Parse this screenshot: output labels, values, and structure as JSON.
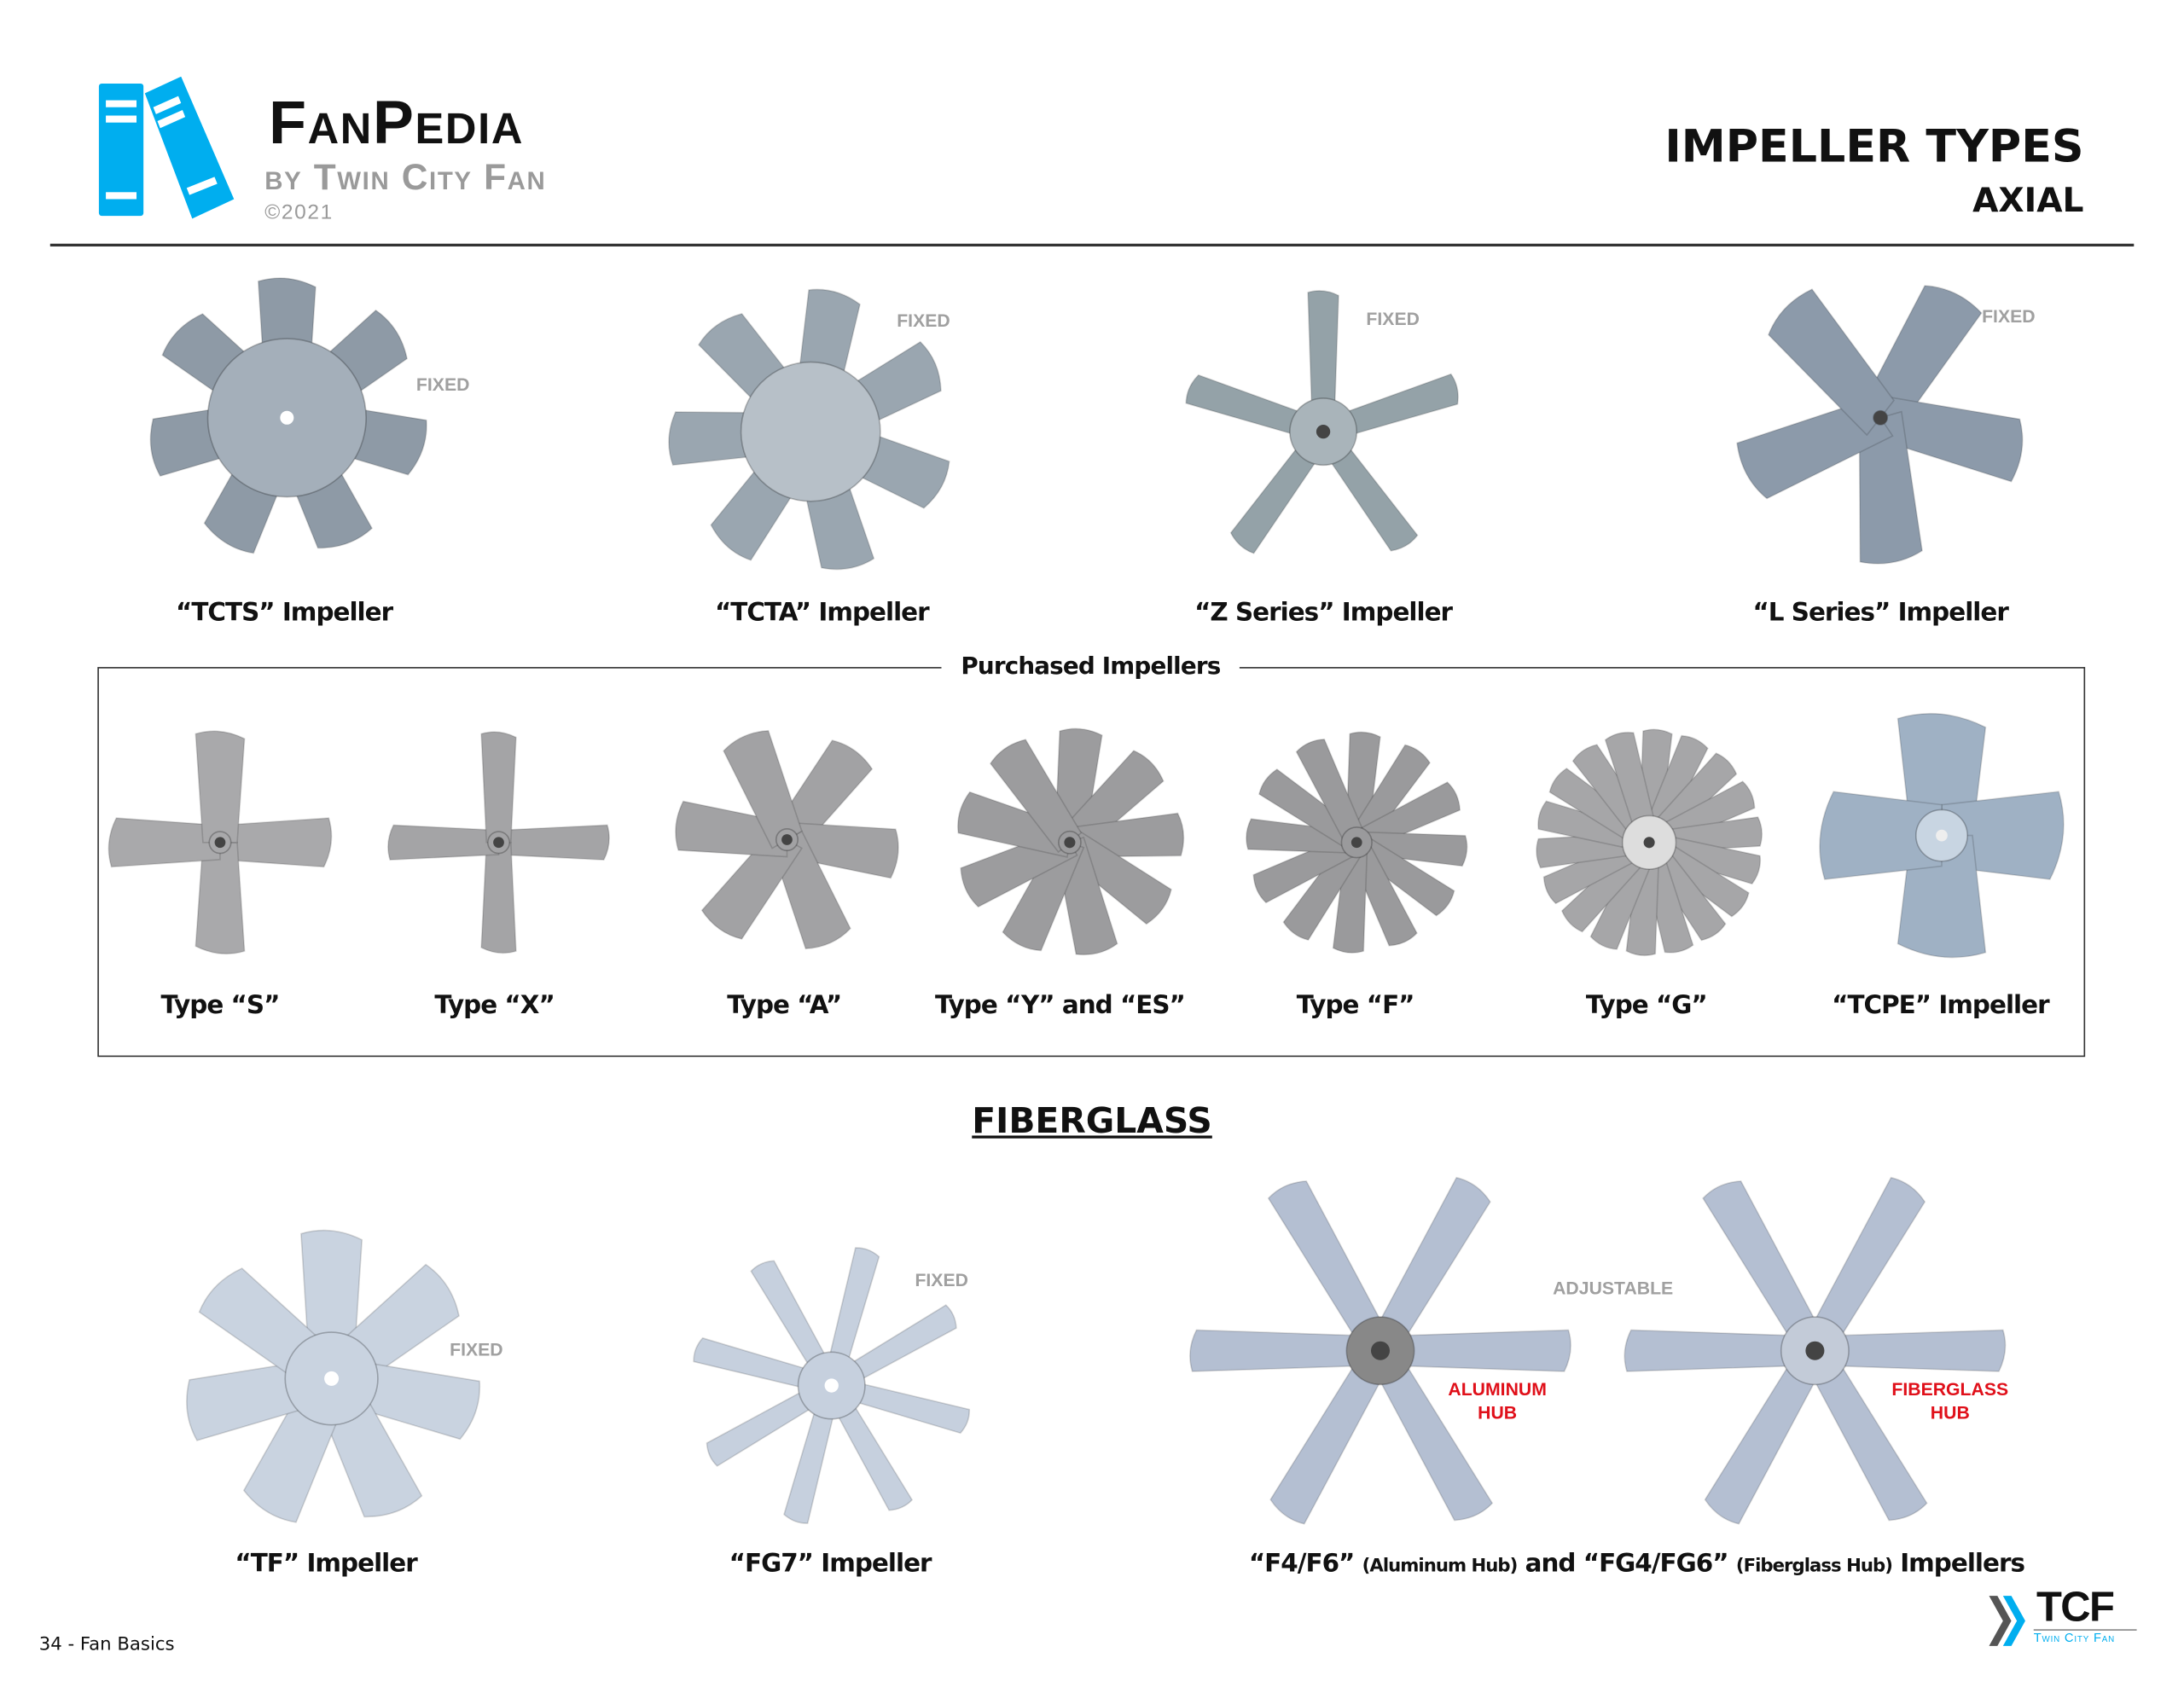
{
  "header": {
    "brand": "FanPedia",
    "byline": "by Twin City Fan",
    "copyright": "©2021",
    "title": "IMPELLER TYPES",
    "subtitle": "AXIAL"
  },
  "top_row": [
    {
      "label": "“TCTS” Impeller",
      "tag": "FIXED",
      "color": "#8e9aa6"
    },
    {
      "label": "“TCTA” Impeller",
      "tag": "FIXED",
      "color": "#9aa6b0"
    },
    {
      "label": "“Z Series” Impeller",
      "tag": "FIXED",
      "color": "#94a2a8"
    },
    {
      "label": "“L Series” Impeller",
      "tag": "FIXED",
      "color": "#8c9aaa"
    }
  ],
  "purchased": {
    "title": "Purchased Impellers",
    "items": [
      {
        "label": "Type “S”",
        "color": "#a9a9ab"
      },
      {
        "label": "Type “X”",
        "color": "#a4a4a6"
      },
      {
        "label": "Type “A”",
        "color": "#a2a2a4"
      },
      {
        "label": "Type “Y” and “ES”",
        "color": "#9c9c9e"
      },
      {
        "label": "Type “F”",
        "color": "#9a9a9c"
      },
      {
        "label": "Type “G”",
        "color": "#a6a6a8"
      },
      {
        "label": "“TCPE” Impeller",
        "color": "#9fb1c4"
      }
    ]
  },
  "fiberglass": {
    "heading": "FIBERGLASS",
    "items": [
      {
        "label": "“TF” Impeller",
        "tag": "FIXED",
        "color": "#c9d3e0"
      },
      {
        "label": "“FG7” Impeller",
        "tag": "FIXED",
        "color": "#c6d0de"
      }
    ],
    "adjustable_tag": "ADJUSTABLE",
    "aluminum_hub": [
      "ALUMINUM",
      "HUB"
    ],
    "fiberglass_hub": [
      "FIBERGLASS",
      "HUB"
    ],
    "caption": {
      "part1": "“F4/F6”",
      "part2": "(Aluminum Hub)",
      "part3": "and “FG4/FG6”",
      "part4": "(Fiberglass Hub)",
      "part5": "Impellers"
    },
    "blade_color": "#b4bfd2"
  },
  "footer": {
    "page": "34 - Fan Basics",
    "logo_text": "TCF",
    "logo_sub": "Twin City Fan"
  },
  "colors": {
    "accent": "#00aeef",
    "red": "#e0101a",
    "gray": "#9a9a9a"
  }
}
